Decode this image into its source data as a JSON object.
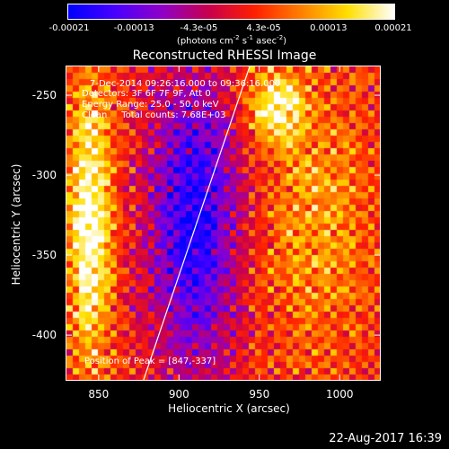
{
  "colorbar": {
    "ticks": [
      "-0.00021",
      "-0.00013",
      "-4.3e-05",
      "4.3e-05",
      "0.00013",
      "0.00021"
    ],
    "unit_parts": [
      "(photons cm",
      "-2",
      " s",
      "-1",
      " asec",
      "-2",
      ")"
    ],
    "colors": [
      "#0000ff",
      "#4a00ff",
      "#9000c8",
      "#c80050",
      "#ff2000",
      "#ff8000",
      "#ffe000",
      "#ffffff"
    ]
  },
  "annotations": {
    "time": "7-Dec-2014 09:26:16.000 to 09:36:16.000",
    "detectors": "Detectors: 3F 6F 7F 9F, Att 0",
    "energy": "Energy Range: 25.0 - 50.0 keV",
    "clean": "Clean     Total counts: 7.68E+03",
    "peak": "Position of Peak = [847,-337]"
  },
  "datestamp": "22-Aug-2017 16:39",
  "chart_data": {
    "type": "heatmap",
    "title": "Reconstructed RHESSI Image",
    "xlabel": "Heliocentric X (arcsec)",
    "ylabel": "Heliocentric Y (arcsec)",
    "xlim": [
      830,
      1025
    ],
    "ylim": [
      -428,
      -232
    ],
    "xticks": [
      850,
      900,
      950,
      1000
    ],
    "yticks": [
      -250,
      -300,
      -350,
      -400
    ],
    "color_range": [
      -0.00021,
      0.00021
    ],
    "peak_position": [
      847,
      -337
    ],
    "limb_line": [
      [
        878,
        -428
      ],
      [
        944,
        -232
      ]
    ],
    "emission_regions": [
      {
        "center": [
          840,
          -340
        ],
        "extent": [
          [
            830,
            860
          ],
          [
            -428,
            -232
          ]
        ],
        "level": 0.00021
      },
      {
        "center": [
          960,
          -270
        ],
        "extent": [
          [
            940,
            980
          ],
          [
            -280,
            -232
          ]
        ],
        "level": 0.00016
      },
      {
        "center": [
          985,
          -330
        ],
        "extent": [
          [
            945,
            1025
          ],
          [
            -428,
            -232
          ]
        ],
        "level": 9e-05
      },
      {
        "center": [
          905,
          -300
        ],
        "extent": [
          [
            880,
            940
          ],
          [
            -428,
            -232
          ]
        ],
        "level": -0.00021
      }
    ]
  }
}
